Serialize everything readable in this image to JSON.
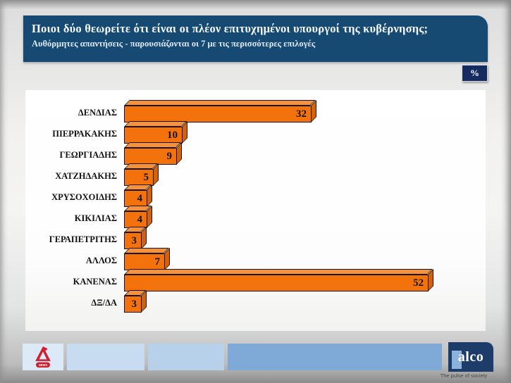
{
  "header": {
    "title": "Ποιοι δύο θεωρείτε ότι είναι οι πλέον επιτυχημένοι υπουργοί της κυβέρνησης;",
    "subtitle": "Αυθόρμητες απαντήσεις - παρουσιάζονται οι 7 με τις περισσότερες επιλογές"
  },
  "unit_badge": "%",
  "chart_data": {
    "type": "bar",
    "orientation": "horizontal",
    "title": "Ποιοι δύο θεωρείτε ότι είναι οι πλέον επιτυχημένοι υπουργοί της κυβέρνησης;",
    "subtitle": "Αυθόρμητες απαντήσεις - παρουσιάζονται οι 7 με τις περισσότερες επιλογές",
    "unit": "%",
    "categories": [
      "ΔΕΝΔΙΑΣ",
      "ΠΙΕΡΡΑΚΑΚΗΣ",
      "ΓΕΩΡΓΙΑΔΗΣ",
      "ΧΑΤΖΗΔΑΚΗΣ",
      "ΧΡΥΣΟΧΟΙΔΗΣ",
      "ΚΙΚΙΛΙΑΣ",
      "ΓΕΡΑΠΕΤΡΙΤΗΣ",
      "ΑΛΛΟΣ",
      "ΚΑΝΕΝΑΣ",
      "ΔΞ/ΔΑ"
    ],
    "values": [
      32,
      10,
      9,
      5,
      4,
      4,
      3,
      7,
      52,
      3
    ],
    "xlim": [
      0,
      55
    ],
    "grid": false,
    "legend": "none",
    "value_labels": "inside-end",
    "bar_style": "3d-extruded"
  },
  "footer": {
    "alpha_news_label": "NEWS",
    "alco": {
      "name": "alco",
      "tagline": "The pulse of society"
    }
  },
  "colors": {
    "header_navy": "#174a73",
    "badge_navy": "#152c63",
    "bar_front": "#f4720b",
    "bar_top": "#f8913c",
    "bar_side": "#d5620a",
    "fbox1": "#dce9f6",
    "fbox2": "#c7dcf0",
    "fbox3": "#b7d1ea",
    "fbox4": "#7fa9d6",
    "alco_navy": "#1e3c6a",
    "alco_accent": "#8db3dd",
    "alpha_red": "#cf1f2e"
  }
}
